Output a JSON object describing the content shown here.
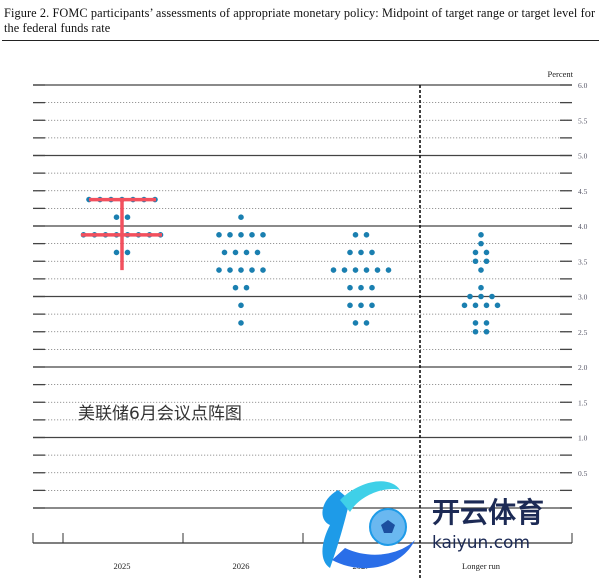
{
  "title": "Figure 2.  FOMC participants’ assessments of appropriate monetary policy:  Midpoint of target range or target level for the federal funds rate",
  "overlay_text": "美联储6月会议点阵图",
  "watermark": {
    "logo_text": "开云体育",
    "logo_url_text": "kaiyun.com"
  },
  "colors": {
    "dot": "#1a7fb0",
    "highlight": "#f2505e",
    "logo_blue": "#1e9be8",
    "logo_navy": "#1c2a55"
  },
  "chart_data": {
    "type": "scatter",
    "subtype": "dot-plot",
    "ylabel": "Percent",
    "ylim": [
      0,
      6
    ],
    "yticks": [
      "6.0",
      "5.5",
      "5.0",
      "4.5",
      "4.0",
      "3.5",
      "3.0",
      "2.5",
      "2.0",
      "1.5",
      "1.0",
      "0.5"
    ],
    "yticks_values": [
      6.0,
      5.5,
      5.0,
      4.5,
      4.0,
      3.5,
      3.0,
      2.5,
      2.0,
      1.5,
      1.0,
      0.5
    ],
    "gridlines_every": 0.25,
    "categories": [
      "2025",
      "2026",
      "2027",
      "Longer run"
    ],
    "dots": [
      {
        "category": "2025",
        "counts": [
          [
            4.375,
            7
          ],
          [
            4.125,
            2
          ],
          [
            3.875,
            8
          ],
          [
            3.625,
            2
          ]
        ]
      },
      {
        "category": "2026",
        "counts": [
          [
            4.125,
            1
          ],
          [
            3.875,
            5
          ],
          [
            3.625,
            4
          ],
          [
            3.375,
            5
          ],
          [
            3.125,
            2
          ],
          [
            2.875,
            1
          ],
          [
            2.625,
            1
          ]
        ]
      },
      {
        "category": "2027",
        "counts": [
          [
            3.875,
            2
          ],
          [
            3.625,
            3
          ],
          [
            3.375,
            6
          ],
          [
            3.125,
            3
          ],
          [
            2.875,
            3
          ],
          [
            2.625,
            2
          ]
        ]
      },
      {
        "category": "Longer run",
        "counts": [
          [
            3.875,
            1
          ],
          [
            3.75,
            1
          ],
          [
            3.625,
            2
          ],
          [
            3.5,
            2
          ],
          [
            3.375,
            1
          ],
          [
            3.125,
            1
          ],
          [
            3.0,
            3
          ],
          [
            2.875,
            4
          ],
          [
            2.625,
            2
          ],
          [
            2.5,
            2
          ]
        ]
      }
    ],
    "annotation": {
      "category": "2025",
      "marked_levels": [
        4.375,
        3.875
      ],
      "vertical_range": [
        3.375,
        4.375
      ]
    }
  }
}
